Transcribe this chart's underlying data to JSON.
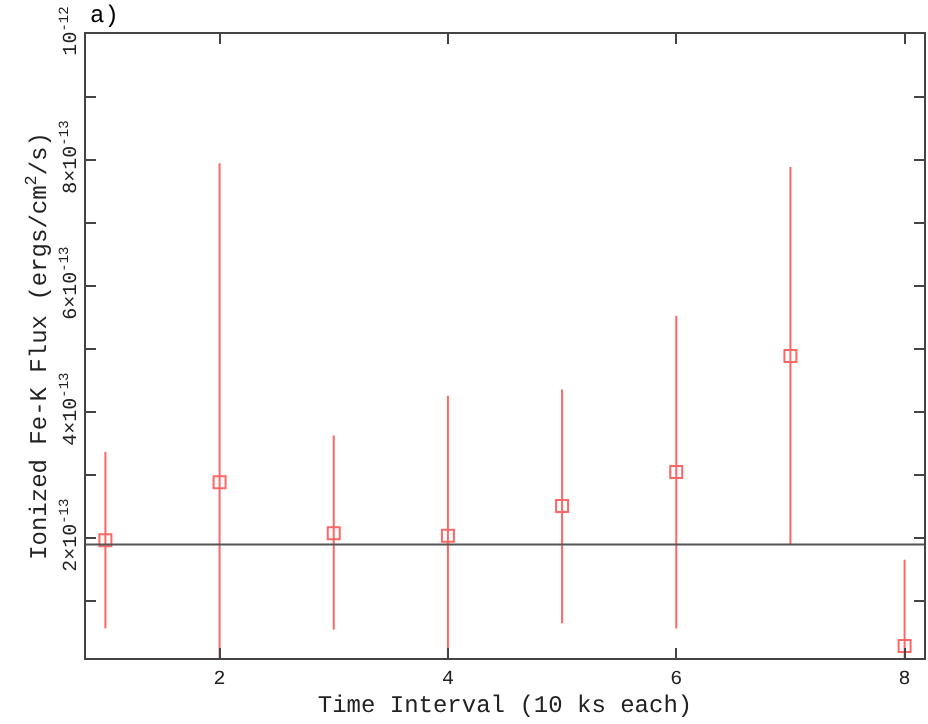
{
  "chart_data": {
    "type": "scatter",
    "xlabel": "Time Interval (10 ks each)",
    "ylabel": "Ionized Fe-K Flux (ergs/cm$^{2}$/s)",
    "annotations": [
      "a)"
    ],
    "x": [
      1,
      2,
      3,
      4,
      5,
      6,
      7,
      8
    ],
    "series": [
      {
        "color": "#ff6666",
        "values": [
          1.97e-13,
          2.89e-13,
          2.08e-13,
          2.04e-13,
          2.51e-13,
          3.05e-13,
          4.89e-13,
          2.9e-14
        ],
        "errors": [
          [
            5.7e-14,
            3.37e-13
          ],
          [
            1e-14,
            7.95e-13
          ],
          [
            5.5e-14,
            3.63e-13
          ],
          [
            1e-14,
            4.26e-13
          ],
          [
            6.5e-14,
            4.36e-13
          ],
          [
            5.7e-14,
            5.53e-13
          ],
          [
            1.9e-13,
            7.89e-13
          ],
          [
            1e-14,
            1.66e-13
          ]
        ]
      }
    ],
    "marker": "square",
    "xlim": [
      0.83,
      8.17
    ],
    "xticks": [
      2,
      4,
      6,
      8
    ],
    "ylim": [
      1e-14,
      1e-12
    ],
    "yticks": [
      {
        "value": 1e-13,
        "label": null
      },
      {
        "value": 2e-13,
        "label": "2×10$^{-13}$"
      },
      {
        "value": 3e-13,
        "label": null
      },
      {
        "value": 4e-13,
        "label": "4×10$^{-13}$"
      },
      {
        "value": 5e-13,
        "label": null
      },
      {
        "value": 6e-13,
        "label": "6×10$^{-13}$"
      },
      {
        "value": 7e-13,
        "label": null
      },
      {
        "value": 8e-13,
        "label": "8×10$^{-13}$"
      },
      {
        "value": 9e-13,
        "label": null
      },
      {
        "value": 1e-12,
        "label": "10$^{-12}$"
      }
    ],
    "ref_lines": [
      {
        "axis": "y",
        "value": 1.9e-13,
        "color": "#555555"
      }
    ],
    "legend": false
  }
}
